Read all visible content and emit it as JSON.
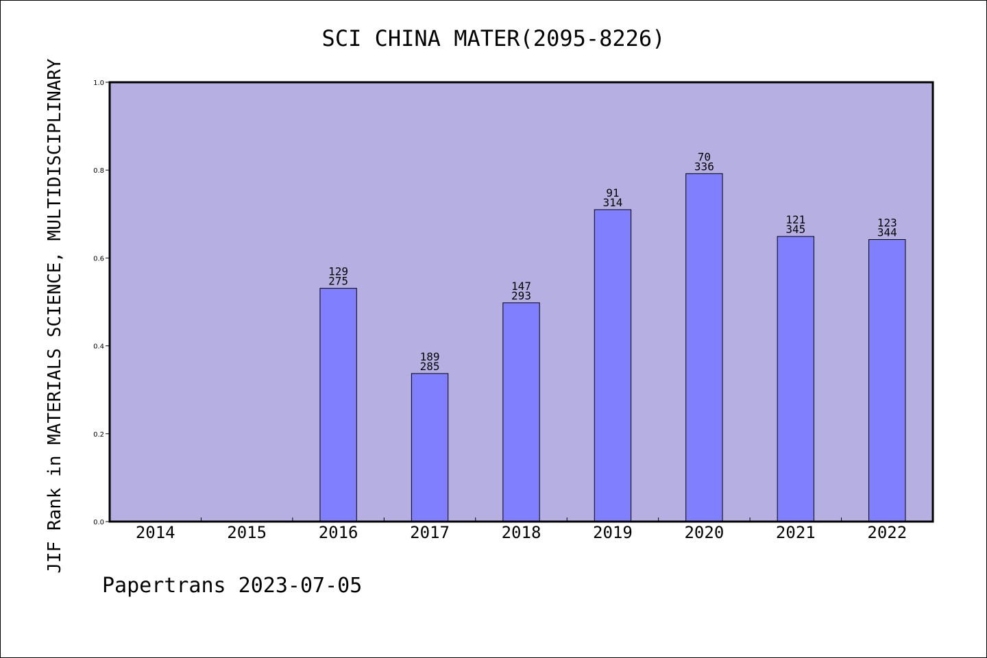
{
  "chart_data": {
    "type": "bar",
    "title": "SCI CHINA MATER(2095-8226)",
    "xlabel": "",
    "ylabel": "JIF Rank in MATERIALS SCIENCE, MULTIDISCIPLINARY",
    "ylim": [
      0.0,
      1.0
    ],
    "yticks": [
      "0.0",
      "0.2",
      "0.4",
      "0.6",
      "0.8",
      "1.0"
    ],
    "categories": [
      "2014",
      "2015",
      "2016",
      "2017",
      "2018",
      "2019",
      "2020",
      "2021",
      "2022"
    ],
    "values": [
      null,
      null,
      0.531,
      0.337,
      0.498,
      0.71,
      0.792,
      0.649,
      0.642
    ],
    "bar_labels": [
      null,
      null,
      {
        "rank": "129",
        "total": "275"
      },
      {
        "rank": "189",
        "total": "285"
      },
      {
        "rank": "147",
        "total": "293"
      },
      {
        "rank": "91",
        "total": "314"
      },
      {
        "rank": "70",
        "total": "336"
      },
      {
        "rank": "121",
        "total": "345"
      },
      {
        "rank": "123",
        "total": "344"
      }
    ],
    "grid": false,
    "colors": {
      "plot_background": "#b6b0e2",
      "bar_fill": "#8080ff",
      "bar_stroke": "#000000"
    }
  },
  "footer": "Papertrans 2023-07-05"
}
